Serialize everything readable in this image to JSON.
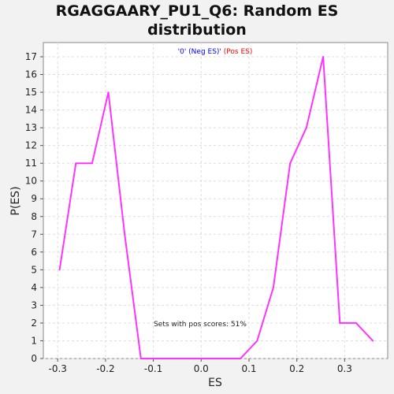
{
  "chart_data": {
    "type": "line",
    "title_line1": "RGAGGAARY_PU1_Q6: Random ES",
    "title_line2": "distribution",
    "xlabel": "ES",
    "ylabel": "P(ES)",
    "legend": {
      "neg_label": "'0' (Neg ES)'",
      "pos_label": " (Pos ES)",
      "neg_color": "#0000ff",
      "pos_color": "#ff0000"
    },
    "annotation": "Sets with pos scores: 51%",
    "xlim": [
      -0.33,
      0.39
    ],
    "ylim": [
      0,
      17.8
    ],
    "x_ticks": [
      -0.3,
      -0.2,
      -0.1,
      0.0,
      0.1,
      0.2,
      0.3
    ],
    "x_tick_labels": [
      "-0.3",
      "-0.2",
      "-0.1",
      "0.0",
      "0.1",
      "0.2",
      "0.3"
    ],
    "y_ticks": [
      0,
      1,
      2,
      3,
      4,
      5,
      6,
      7,
      8,
      9,
      10,
      11,
      12,
      13,
      14,
      15,
      16,
      17
    ],
    "grid": true,
    "series": [
      {
        "color": "#ff33ff",
        "x": [
          -0.296,
          -0.262,
          -0.228,
          -0.194,
          -0.16,
          -0.126,
          -0.092,
          -0.058,
          -0.024,
          0.01,
          0.044,
          0.082,
          0.117,
          0.151,
          0.186,
          0.22,
          0.255,
          0.29,
          0.324,
          0.359
        ],
        "y": [
          5,
          11,
          11,
          15,
          7,
          0,
          0,
          0,
          0,
          0,
          0,
          0,
          1,
          4,
          11,
          13,
          17,
          2,
          2,
          1
        ]
      }
    ]
  }
}
